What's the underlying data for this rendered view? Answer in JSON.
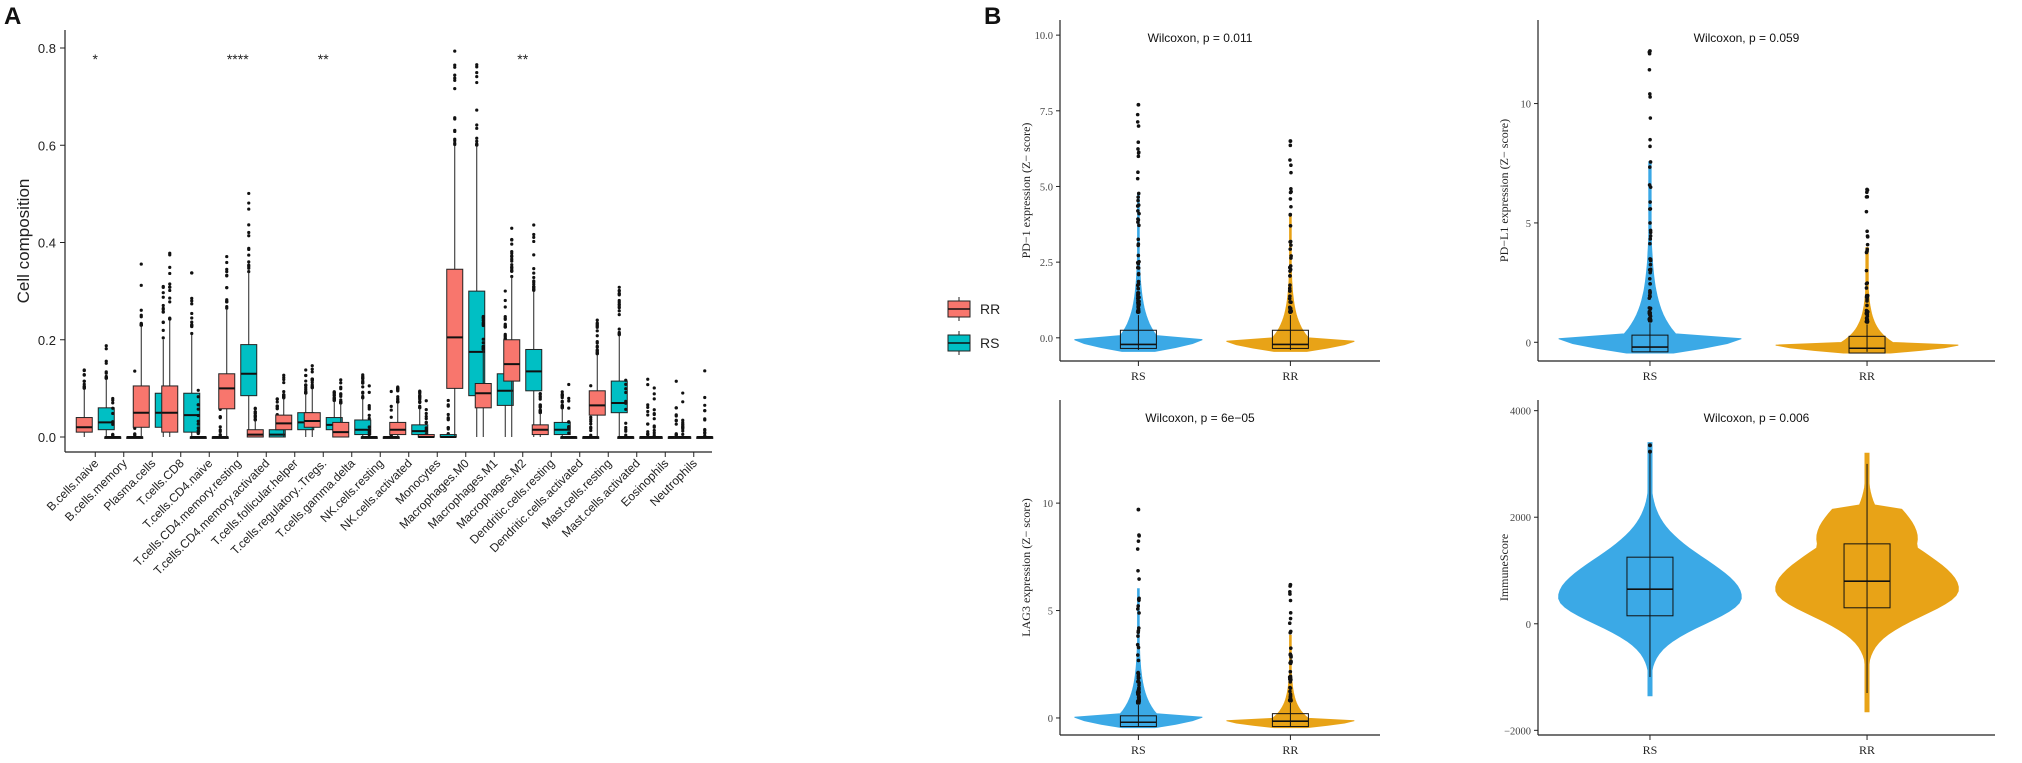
{
  "panel_a_label": "A",
  "panel_b_label": "B",
  "colors": {
    "RR": "#F8766D",
    "RS": "#00BFC4",
    "violin_RS": "#3BA9E6",
    "violin_RR": "#E8A317"
  },
  "chart_data": [
    {
      "type": "box",
      "ylabel": "Cell composition",
      "ylim": [
        0,
        0.8
      ],
      "yticks": [
        "0.0",
        "0.2",
        "0.4",
        "0.6",
        "0.8"
      ],
      "legend": {
        "position": "right",
        "entries": [
          "RR",
          "RS"
        ]
      },
      "categories": [
        "B.cells.naive",
        "B.cells.memory",
        "Plasma.cells",
        "T.cells.CD8",
        "T.cells.CD4.naive",
        "T.cells.CD4.memory.resting",
        "T.cells.CD4.memory.activated",
        "T.cells.follicular.helper",
        "T.cells.regulatory..Tregs.",
        "T.cells.gamma.delta",
        "NK.cells.resting",
        "NK.cells.activated",
        "Monocytes",
        "Macrophages.M0",
        "Macrophages.M1",
        "Macrophages.M2",
        "Dendritic.cells.resting",
        "Dendritic.cells.activated",
        "Mast.cells.resting",
        "Mast.cells.activated",
        "Eosinophils",
        "Neutrophils"
      ],
      "significance": [
        "*",
        "",
        "",
        "",
        "",
        "****",
        "",
        "",
        "**",
        "",
        "",
        "",
        "",
        "",
        "",
        "**",
        "",
        "",
        "",
        "",
        "",
        ""
      ],
      "series": [
        {
          "name": "RR",
          "boxes": [
            [
              0.0,
              0.01,
              0.02,
              0.04,
              0.1
            ],
            [
              0.0,
              0.0,
              0.0,
              0.0,
              0.0
            ],
            [
              0.0,
              0.02,
              0.05,
              0.105,
              0.23
            ],
            [
              0.0,
              0.01,
              0.05,
              0.105,
              0.24
            ],
            [
              0.0,
              0.0,
              0.0,
              0.0,
              0.0
            ],
            [
              0.0,
              0.058,
              0.1,
              0.13,
              0.265
            ],
            [
              0.0,
              0.0,
              0.005,
              0.015,
              0.035
            ],
            [
              0.0,
              0.015,
              0.028,
              0.045,
              0.08
            ],
            [
              0.0,
              0.02,
              0.033,
              0.05,
              0.1
            ],
            [
              0.0,
              0.0,
              0.01,
              0.03,
              0.07
            ],
            [
              0.0,
              0.0,
              0.0,
              0.0,
              0.0
            ],
            [
              0.0,
              0.005,
              0.015,
              0.03,
              0.07
            ],
            [
              0.0,
              0.0,
              0.0,
              0.005,
              0.01
            ],
            [
              0.0,
              0.1,
              0.205,
              0.345,
              0.6
            ],
            [
              0.0,
              0.06,
              0.09,
              0.11,
              0.18
            ],
            [
              0.0,
              0.115,
              0.15,
              0.2,
              0.33
            ],
            [
              0.0,
              0.005,
              0.015,
              0.025,
              0.05
            ],
            [
              0.0,
              0.0,
              0.0,
              0.0,
              0.0
            ],
            [
              0.0,
              0.045,
              0.065,
              0.095,
              0.17
            ],
            [
              0.0,
              0.0,
              0.0,
              0.0,
              0.0
            ],
            [
              0.0,
              0.0,
              0.0,
              0.0,
              0.0
            ],
            [
              0.0,
              0.0,
              0.0,
              0.0,
              0.0
            ]
          ]
        },
        {
          "name": "RS",
          "boxes": [
            [
              0.0,
              0.015,
              0.03,
              0.06,
              0.12
            ],
            [
              0.0,
              0.0,
              0.0,
              0.0,
              0.0
            ],
            [
              0.0,
              0.02,
              0.05,
              0.09,
              0.2
            ],
            [
              0.0,
              0.01,
              0.045,
              0.09,
              0.21
            ],
            [
              0.0,
              0.0,
              0.0,
              0.0,
              0.0
            ],
            [
              0.0,
              0.085,
              0.13,
              0.19,
              0.34
            ],
            [
              0.0,
              0.0,
              0.005,
              0.015,
              0.04
            ],
            [
              0.0,
              0.015,
              0.03,
              0.05,
              0.09
            ],
            [
              0.0,
              0.015,
              0.025,
              0.04,
              0.075
            ],
            [
              0.0,
              0.005,
              0.015,
              0.035,
              0.08
            ],
            [
              0.0,
              0.0,
              0.0,
              0.0,
              0.0
            ],
            [
              0.0,
              0.005,
              0.012,
              0.025,
              0.06
            ],
            [
              0.0,
              0.0,
              0.0,
              0.005,
              0.01
            ],
            [
              0.0,
              0.085,
              0.175,
              0.3,
              0.6
            ],
            [
              0.0,
              0.065,
              0.095,
              0.13,
              0.2
            ],
            [
              0.0,
              0.095,
              0.135,
              0.18,
              0.3
            ],
            [
              0.0,
              0.005,
              0.015,
              0.03,
              0.06
            ],
            [
              0.0,
              0.0,
              0.0,
              0.0,
              0.0
            ],
            [
              0.0,
              0.05,
              0.07,
              0.115,
              0.21
            ],
            [
              0.0,
              0.0,
              0.0,
              0.0,
              0.0
            ],
            [
              0.0,
              0.0,
              0.0,
              0.0,
              0.0
            ],
            [
              0.0,
              0.0,
              0.0,
              0.0,
              0.0
            ]
          ]
        }
      ]
    },
    {
      "type": "violin",
      "ylabel": "PD−1 expression (Z− score)",
      "annotation": "Wilcoxon, p = 0.011",
      "ylim": [
        -0.7,
        10.5
      ],
      "yticks": [
        0.0,
        2.5,
        5.0,
        7.5,
        10.0
      ],
      "ytick_labels": [
        "0.0",
        "2.5",
        "5.0",
        "7.5",
        "10.0"
      ],
      "categories": [
        "RS",
        "RR"
      ],
      "boxes": [
        [
          -0.35,
          -0.22,
          0.25
        ],
        [
          -0.35,
          -0.22,
          0.25
        ]
      ],
      "outlier_max": [
        7.7,
        6.5
      ]
    },
    {
      "type": "violin",
      "ylabel": "PD−L1 expression (Z− score)",
      "annotation": "Wilcoxon, p = 0.059",
      "ylim": [
        -0.7,
        13.5
      ],
      "yticks": [
        0,
        5,
        10
      ],
      "ytick_labels": [
        "0",
        "5",
        "10"
      ],
      "categories": [
        "RS",
        "RR"
      ],
      "boxes": [
        [
          -0.4,
          -0.2,
          0.3
        ],
        [
          -0.45,
          -0.25,
          0.25
        ]
      ],
      "outlier_max": [
        12.2,
        6.4
      ]
    },
    {
      "type": "violin",
      "ylabel": "LAG3 expression (Z− score)",
      "annotation": "Wilcoxon, p = 6e−05",
      "ylim": [
        -0.7,
        14.8
      ],
      "yticks": [
        0,
        5,
        10
      ],
      "ytick_labels": [
        "0",
        "5",
        "10"
      ],
      "categories": [
        "RS",
        "RR"
      ],
      "boxes": [
        [
          -0.4,
          -0.2,
          0.1
        ],
        [
          -0.4,
          -0.15,
          0.2
        ]
      ],
      "outlier_max": [
        9.7,
        6.2
      ]
    },
    {
      "type": "violin",
      "ylabel": "ImmuneScore",
      "annotation": "Wilcoxon, p = 0.006",
      "ylim": [
        -2050,
        4200
      ],
      "yticks": [
        -2000,
        0,
        2000,
        4000
      ],
      "ytick_labels": [
        "−2000",
        "0",
        "2000",
        "4000"
      ],
      "categories": [
        "RS",
        "RR"
      ],
      "boxes": [
        [
          150,
          650,
          1250
        ],
        [
          300,
          800,
          1500
        ]
      ],
      "whiskers": [
        [
          -1000,
          3200
        ],
        [
          -1300,
          3000
        ]
      ],
      "outlier_max": [
        3350,
        null
      ]
    }
  ]
}
